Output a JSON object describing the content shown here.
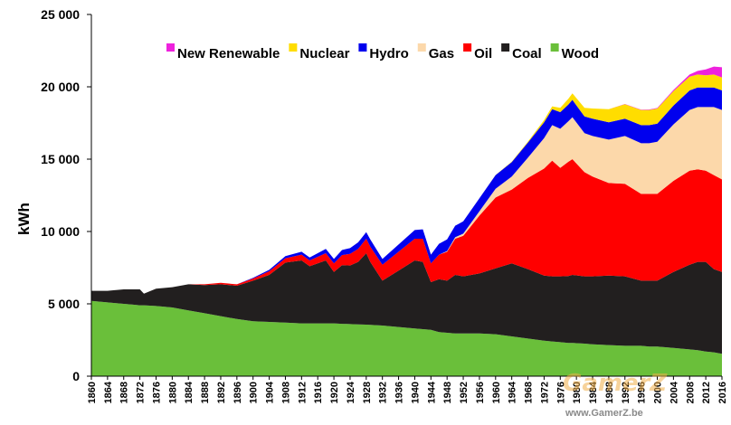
{
  "watermark": {
    "logo_text": "GamerZ",
    "url": "www.GamerZ.be"
  },
  "chart_data": {
    "type": "area",
    "stacked": true,
    "title": "",
    "xlabel": "",
    "ylabel": "kWh",
    "xlim": [
      1860,
      2016
    ],
    "ylim": [
      0,
      25000
    ],
    "yticks": [
      0,
      5000,
      10000,
      15000,
      20000,
      25000
    ],
    "ytick_labels": [
      "0",
      "5 000",
      "10 000",
      "15 000",
      "20 000",
      "25 000"
    ],
    "xtick_labels": [
      "1860",
      "1864",
      "1868",
      "1872",
      "1876",
      "1880",
      "1884",
      "1888",
      "1892",
      "1896",
      "1900",
      "1904",
      "1908",
      "1912",
      "1916",
      "1920",
      "1924",
      "1928",
      "1932",
      "1936",
      "1940",
      "1944",
      "1948",
      "1952",
      "1956",
      "1960",
      "1964",
      "1968",
      "1972",
      "1976",
      "1980",
      "1984",
      "1988",
      "1992",
      "1996",
      "2000",
      "2004",
      "2008",
      "2012",
      "2016"
    ],
    "grid": false,
    "legend_position": "top-right",
    "x": [
      1860,
      1864,
      1868,
      1870,
      1872,
      1873,
      1876,
      1880,
      1884,
      1888,
      1892,
      1896,
      1900,
      1904,
      1908,
      1912,
      1914,
      1916,
      1918,
      1920,
      1922,
      1924,
      1926,
      1928,
      1929,
      1932,
      1936,
      1940,
      1942,
      1944,
      1946,
      1948,
      1950,
      1952,
      1956,
      1960,
      1964,
      1968,
      1972,
      1974,
      1976,
      1978,
      1979,
      1982,
      1984,
      1988,
      1992,
      1996,
      1998,
      2000,
      2004,
      2008,
      2010,
      2012,
      2014,
      2016
    ],
    "series": [
      {
        "name": "Wood",
        "color": "#6abf3a",
        "values": [
          5200,
          5100,
          5000,
          4950,
          4900,
          4900,
          4850,
          4750,
          4550,
          4350,
          4150,
          3950,
          3800,
          3750,
          3700,
          3650,
          3650,
          3650,
          3650,
          3650,
          3620,
          3600,
          3580,
          3560,
          3550,
          3500,
          3400,
          3300,
          3250,
          3200,
          3050,
          3000,
          2950,
          2950,
          2950,
          2900,
          2750,
          2600,
          2450,
          2400,
          2350,
          2300,
          2300,
          2250,
          2200,
          2150,
          2100,
          2100,
          2050,
          2050,
          1950,
          1850,
          1800,
          1700,
          1650,
          1550
        ]
      },
      {
        "name": "Coal",
        "color": "#221f1f",
        "values": [
          700,
          800,
          1000,
          1050,
          1100,
          800,
          1200,
          1400,
          1800,
          1950,
          2200,
          2300,
          2800,
          3250,
          4150,
          4350,
          3950,
          4150,
          4350,
          3550,
          4050,
          4050,
          4320,
          4940,
          4350,
          3100,
          3900,
          4700,
          4650,
          3300,
          3650,
          3600,
          4050,
          3950,
          4150,
          4550,
          5050,
          4800,
          4500,
          4500,
          4550,
          4620,
          4700,
          4650,
          4700,
          4800,
          4800,
          4500,
          4550,
          4550,
          5250,
          5850,
          6100,
          6200,
          5750,
          5650
        ]
      },
      {
        "name": "Oil",
        "color": "#ff0000",
        "values": [
          0,
          0,
          0,
          0,
          0,
          0,
          0,
          0,
          0,
          50,
          100,
          100,
          150,
          250,
          300,
          400,
          400,
          450,
          500,
          600,
          700,
          800,
          900,
          1000,
          1050,
          1100,
          1300,
          1500,
          1600,
          1300,
          1700,
          2000,
          2500,
          2800,
          4000,
          4900,
          5100,
          6300,
          7400,
          8000,
          7500,
          7900,
          8000,
          7200,
          6900,
          6400,
          6400,
          6000,
          6000,
          6000,
          6300,
          6500,
          6400,
          6300,
          6500,
          6400
        ]
      },
      {
        "name": "Gas",
        "color": "#fcd8aa",
        "values": [
          0,
          0,
          0,
          0,
          0,
          0,
          0,
          0,
          0,
          0,
          0,
          0,
          0,
          0,
          0,
          0,
          0,
          0,
          0,
          0,
          0,
          0,
          0,
          0,
          0,
          0,
          0,
          0,
          0,
          0,
          0,
          50,
          100,
          150,
          300,
          600,
          900,
          1400,
          2100,
          2450,
          2700,
          2800,
          2900,
          2700,
          2800,
          3000,
          3300,
          3500,
          3500,
          3600,
          3900,
          4200,
          4300,
          4400,
          4700,
          4800
        ]
      },
      {
        "name": "Hydro",
        "color": "#0000ee",
        "values": [
          0,
          0,
          0,
          0,
          0,
          0,
          0,
          0,
          0,
          0,
          0,
          0,
          50,
          100,
          150,
          200,
          200,
          250,
          300,
          300,
          350,
          400,
          450,
          450,
          500,
          400,
          500,
          600,
          650,
          600,
          750,
          800,
          800,
          850,
          900,
          950,
          1000,
          1050,
          1100,
          1100,
          1150,
          1150,
          1200,
          1150,
          1200,
          1200,
          1200,
          1250,
          1250,
          1250,
          1300,
          1350,
          1350,
          1350,
          1350,
          1350
        ]
      },
      {
        "name": "Nuclear",
        "color": "#ffdd00",
        "values": [
          0,
          0,
          0,
          0,
          0,
          0,
          0,
          0,
          0,
          0,
          0,
          0,
          0,
          0,
          0,
          0,
          0,
          0,
          0,
          0,
          0,
          0,
          0,
          0,
          0,
          0,
          0,
          0,
          0,
          0,
          0,
          0,
          0,
          0,
          0,
          10,
          30,
          60,
          150,
          200,
          300,
          400,
          450,
          600,
          700,
          900,
          1000,
          1050,
          1050,
          1050,
          1000,
          950,
          900,
          850,
          900,
          900
        ]
      },
      {
        "name": "New Renewable",
        "color": "#ee22dd",
        "values": [
          0,
          0,
          0,
          0,
          0,
          0,
          0,
          0,
          0,
          0,
          0,
          0,
          0,
          0,
          0,
          0,
          0,
          0,
          0,
          0,
          0,
          0,
          0,
          0,
          0,
          0,
          0,
          0,
          0,
          0,
          0,
          0,
          0,
          0,
          0,
          0,
          0,
          0,
          0,
          0,
          0,
          0,
          0,
          0,
          0,
          0,
          10,
          20,
          30,
          40,
          80,
          150,
          250,
          400,
          550,
          700
        ]
      }
    ],
    "legend_order": [
      "New Renewable",
      "Nuclear",
      "Hydro",
      "Gas",
      "Oil",
      "Coal",
      "Wood"
    ]
  }
}
